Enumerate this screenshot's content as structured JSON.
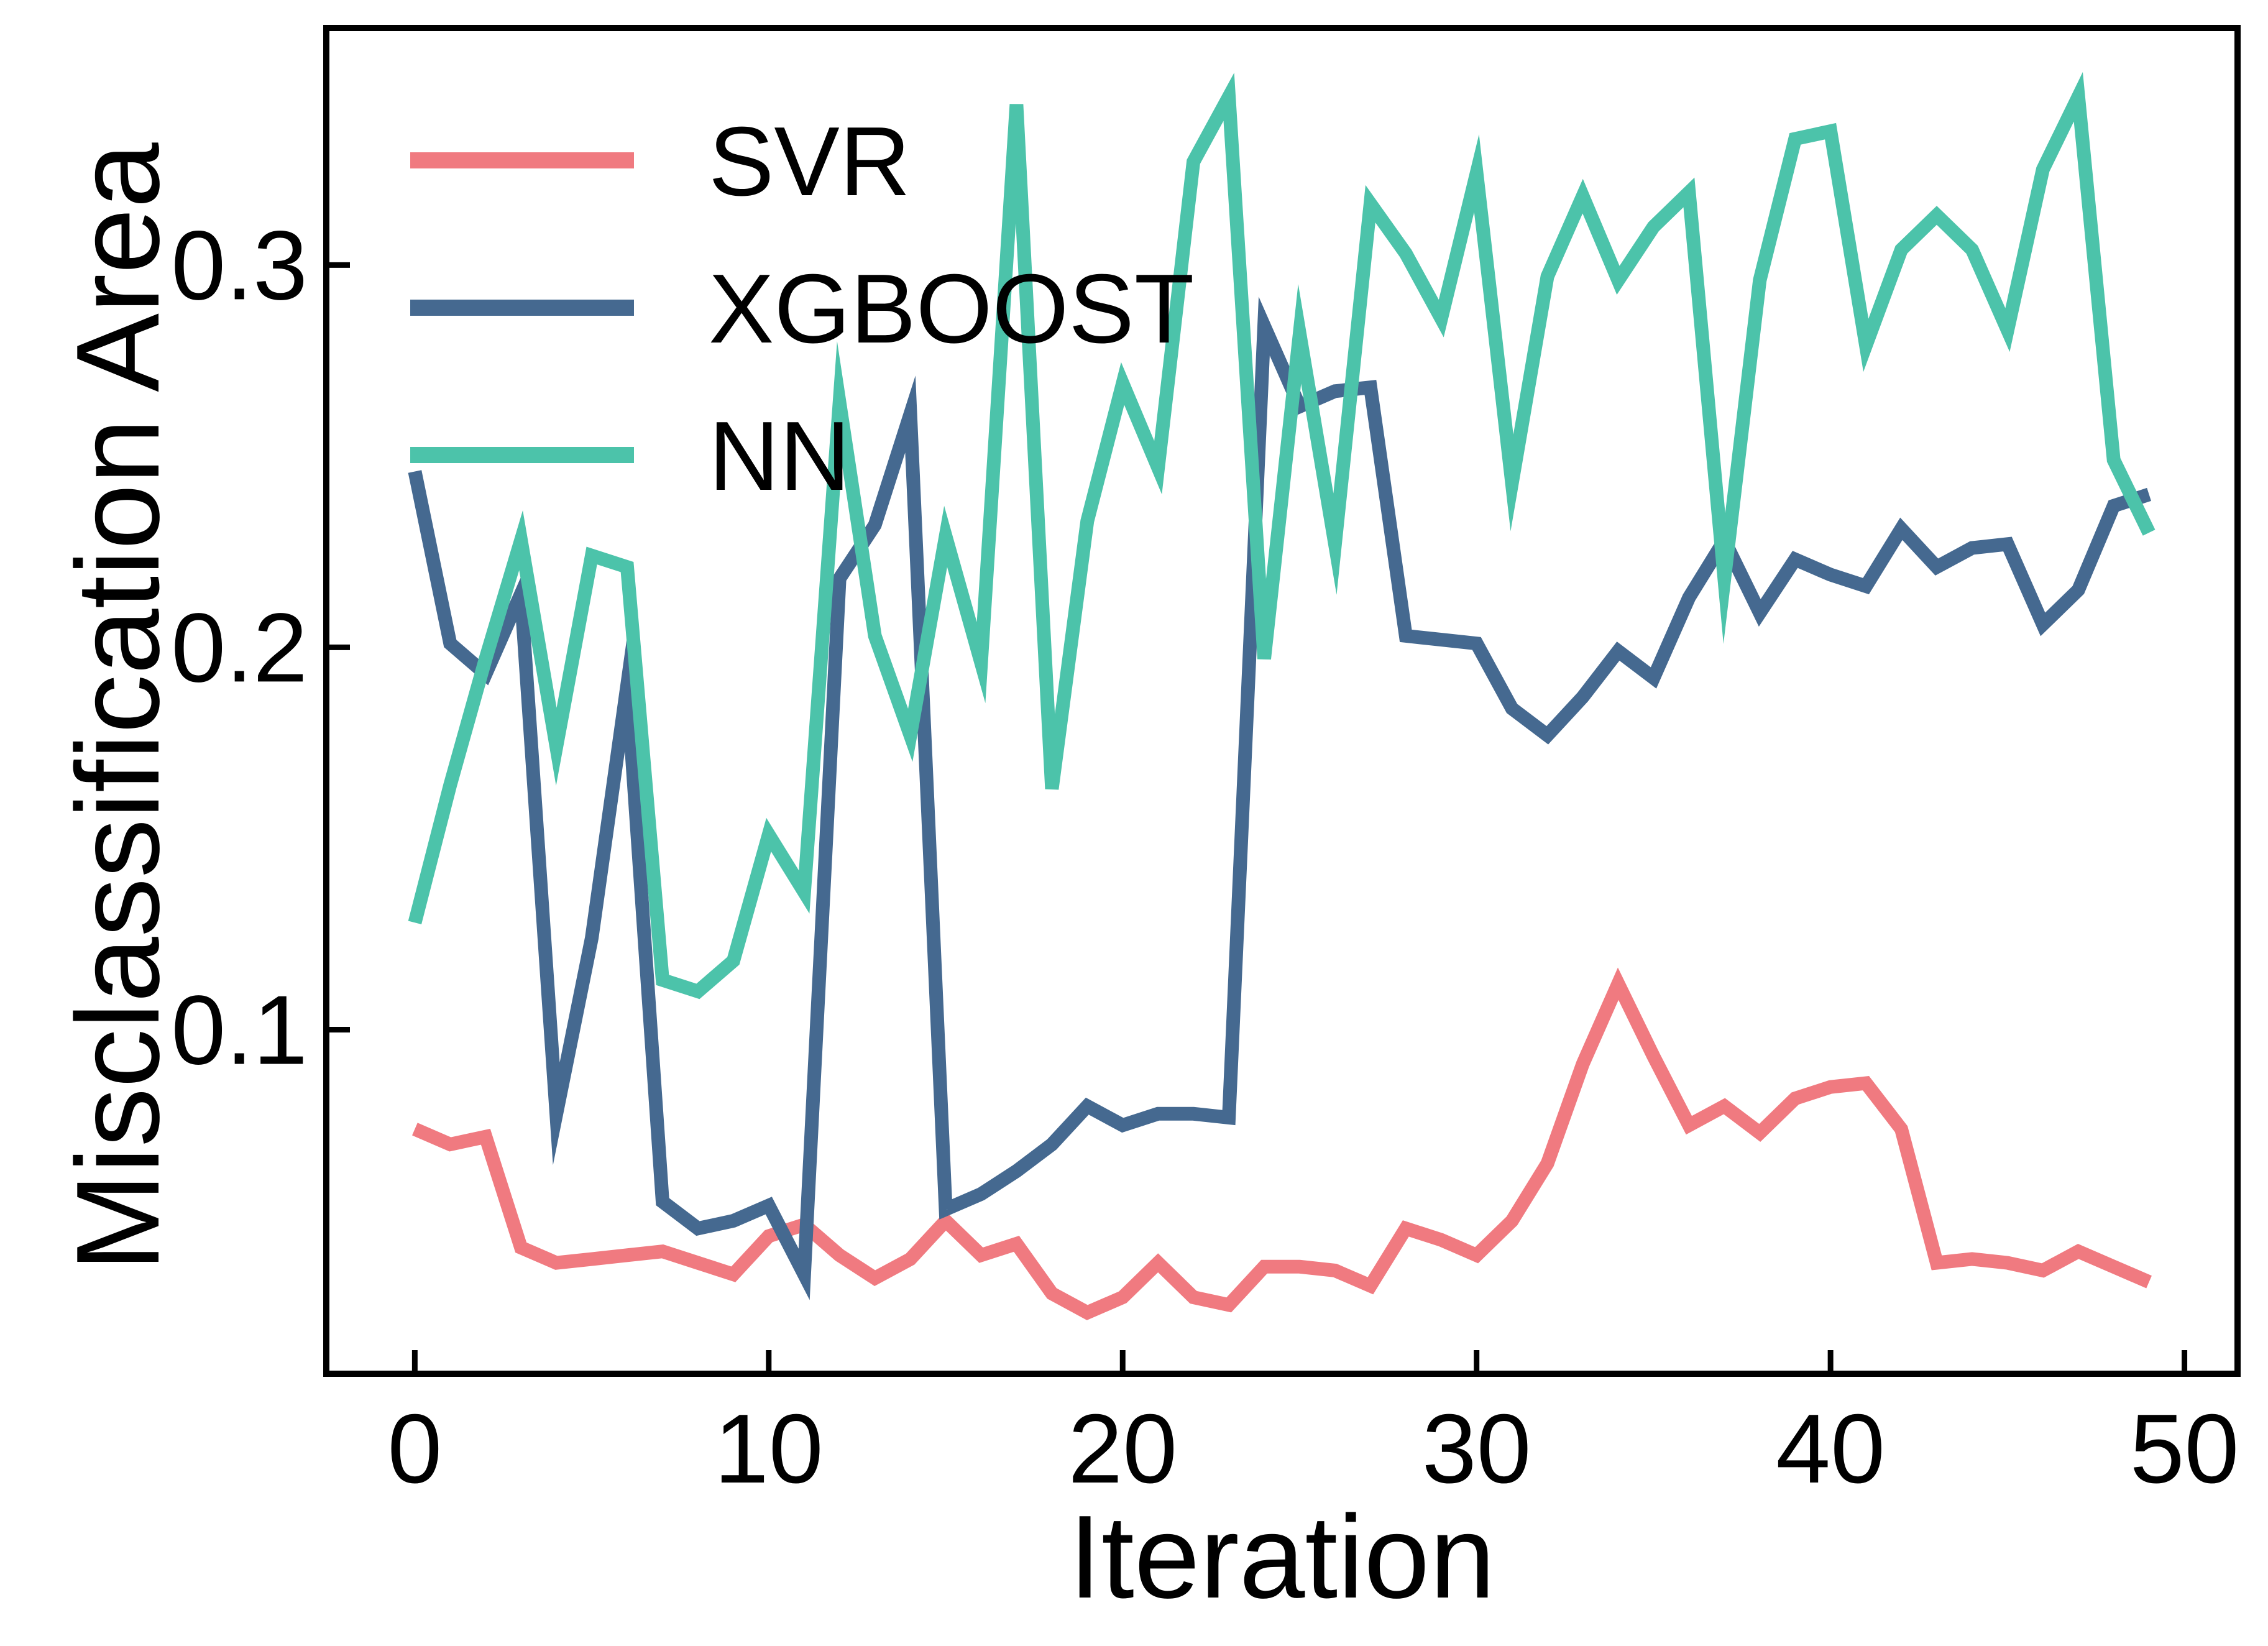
{
  "chart_data": {
    "type": "line",
    "xlabel": "Iteration",
    "ylabel": "Misclassification Area",
    "xlim": [
      -2.5,
      51.5
    ],
    "ylim": [
      0.01,
      0.362
    ],
    "xticks": [
      0,
      10,
      20,
      30,
      40,
      50
    ],
    "xtick_labels": [
      "0",
      "10",
      "20",
      "30",
      "40",
      "50"
    ],
    "yticks": [
      0.1,
      0.2,
      0.3
    ],
    "ytick_labels": [
      "0.1",
      "0.2",
      "0.3"
    ],
    "grid": false,
    "legend_position": "top-left",
    "x": [
      0,
      1,
      2,
      3,
      4,
      5,
      6,
      7,
      8,
      9,
      10,
      11,
      12,
      13,
      14,
      15,
      16,
      17,
      18,
      19,
      20,
      21,
      22,
      23,
      24,
      25,
      26,
      27,
      28,
      29,
      30,
      31,
      32,
      33,
      34,
      35,
      36,
      37,
      38,
      39,
      40,
      41,
      42,
      43,
      44,
      45,
      46,
      47,
      48,
      49
    ],
    "series": [
      {
        "name": "SVR",
        "color": "#f07a80",
        "values": [
          0.074,
          0.07,
          0.072,
          0.043,
          0.039,
          0.04,
          0.041,
          0.042,
          0.039,
          0.036,
          0.046,
          0.049,
          0.041,
          0.035,
          0.04,
          0.05,
          0.041,
          0.044,
          0.031,
          0.026,
          0.03,
          0.039,
          0.03,
          0.028,
          0.038,
          0.038,
          0.037,
          0.033,
          0.048,
          0.045,
          0.041,
          0.05,
          0.065,
          0.091,
          0.112,
          0.093,
          0.075,
          0.08,
          0.073,
          0.082,
          0.085,
          0.086,
          0.074,
          0.039,
          0.04,
          0.039,
          0.037,
          0.042,
          0.038,
          0.034
        ]
      },
      {
        "name": "XGBOOST",
        "color": "#456990",
        "values": [
          0.246,
          0.201,
          0.193,
          0.214,
          0.078,
          0.124,
          0.19,
          0.055,
          0.048,
          0.05,
          0.054,
          0.036,
          0.218,
          0.232,
          0.261,
          0.053,
          0.057,
          0.063,
          0.07,
          0.08,
          0.075,
          0.078,
          0.078,
          0.077,
          0.284,
          0.263,
          0.267,
          0.268,
          0.203,
          0.202,
          0.201,
          0.184,
          0.177,
          0.187,
          0.199,
          0.192,
          0.213,
          0.228,
          0.209,
          0.223,
          0.219,
          0.216,
          0.231,
          0.221,
          0.226,
          0.227,
          0.206,
          0.215,
          0.237,
          0.24
        ]
      },
      {
        "name": "NN",
        "color": "#4cc3aa",
        "values": [
          0.128,
          0.164,
          0.197,
          0.228,
          0.174,
          0.224,
          0.221,
          0.113,
          0.11,
          0.118,
          0.151,
          0.136,
          0.264,
          0.203,
          0.177,
          0.229,
          0.196,
          0.342,
          0.163,
          0.233,
          0.269,
          0.247,
          0.327,
          0.344,
          0.197,
          0.282,
          0.227,
          0.316,
          0.303,
          0.286,
          0.324,
          0.243,
          0.297,
          0.318,
          0.296,
          0.31,
          0.319,
          0.218,
          0.296,
          0.333,
          0.335,
          0.279,
          0.304,
          0.313,
          0.304,
          0.283,
          0.325,
          0.344,
          0.249,
          0.23
        ]
      }
    ]
  }
}
